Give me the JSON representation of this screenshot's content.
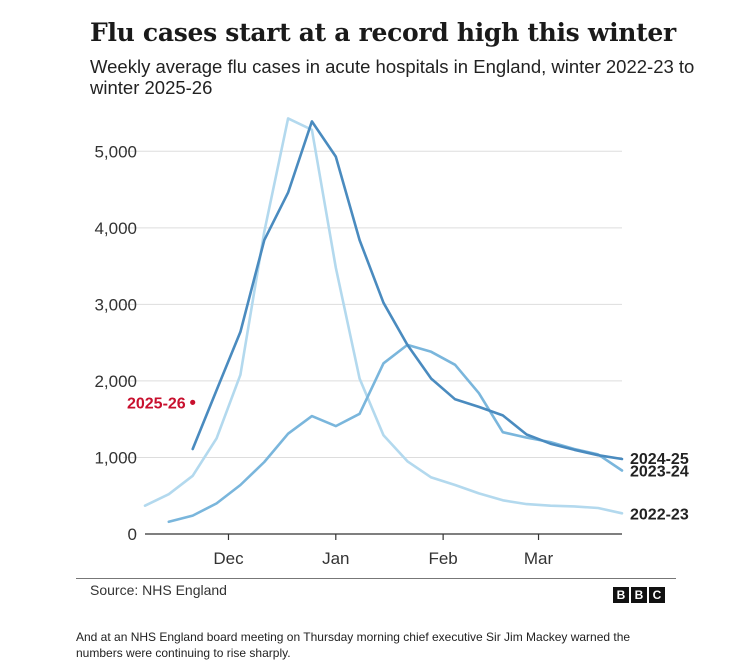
{
  "title": "Flu cases start at a record high this winter",
  "subtitle": "Weekly average flu cases in acute hospitals in England, winter 2022-23 to winter 2025-26",
  "source": "Source: NHS England",
  "logo_letters": [
    "B",
    "B",
    "C"
  ],
  "caption": "And at an NHS England board meeting on Thursday morning chief executive Sir Jim Mackey warned the numbers were continuing to rise sharply.",
  "chart_data": {
    "type": "line",
    "title": "Flu cases start at a record high this winter",
    "subtitle": "Weekly average flu cases in acute hospitals in England, winter 2022-23 to winter 2025-26",
    "xlabel": "",
    "ylabel": "",
    "x_tick_labels": [
      "Dec",
      "Jan",
      "Feb",
      "Mar"
    ],
    "x_tick_weeks": [
      3.5,
      8.0,
      12.5,
      16.5
    ],
    "y_ticks": [
      0,
      1000,
      2000,
      3000,
      4000,
      5000
    ],
    "y_tick_labels": [
      "0",
      "1,000",
      "2,000",
      "3,000",
      "4,000",
      "5,000"
    ],
    "ylim": [
      0,
      5500
    ],
    "grid": "horizontal",
    "legend": "direct labels at line ends",
    "colors": {
      "2022-23": "#b3d9ee",
      "2023-24": "#7ab6dc",
      "2024-25": "#4a8bbf",
      "2025-26": "#c8102e",
      "grid": "#dddddd",
      "axis": "#333333"
    },
    "series": [
      {
        "name": "2022-23",
        "x": [
          0,
          1,
          2,
          3,
          4,
          5,
          6,
          7,
          8,
          9,
          10,
          11,
          12,
          13,
          14,
          15,
          16,
          17,
          18,
          19,
          20
        ],
        "values": [
          370,
          520,
          760,
          1250,
          2080,
          3950,
          5430,
          5280,
          3480,
          2030,
          1290,
          950,
          740,
          640,
          530,
          440,
          390,
          370,
          360,
          340,
          270
        ]
      },
      {
        "name": "2023-24",
        "x": [
          1,
          2,
          3,
          4,
          5,
          6,
          7,
          8,
          9,
          10,
          11,
          12,
          13,
          14,
          15,
          16,
          17,
          18,
          19,
          20
        ],
        "values": [
          160,
          240,
          400,
          640,
          940,
          1310,
          1540,
          1410,
          1570,
          2230,
          2470,
          2380,
          2210,
          1840,
          1330,
          1260,
          1200,
          1110,
          1040,
          830
        ]
      },
      {
        "name": "2024-25",
        "x": [
          2,
          3,
          4,
          5,
          6,
          7,
          8,
          9,
          10,
          11,
          12,
          13,
          14,
          15,
          16,
          17,
          18,
          19,
          20
        ],
        "values": [
          1110,
          1880,
          2640,
          3840,
          4460,
          5390,
          4930,
          3840,
          3020,
          2470,
          2030,
          1760,
          1660,
          1550,
          1300,
          1180,
          1100,
          1030,
          980
        ]
      },
      {
        "name": "2025-26",
        "x": [
          2
        ],
        "values": [
          1720
        ]
      }
    ]
  }
}
